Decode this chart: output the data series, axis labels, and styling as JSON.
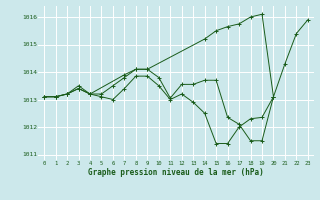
{
  "background_color": "#cce8eb",
  "grid_color": "#ffffff",
  "line_color": "#1a5c1a",
  "xlabel": "Graphe pression niveau de la mer (hPa)",
  "ylim": [
    1010.8,
    1016.4
  ],
  "xlim": [
    -0.5,
    23.5
  ],
  "yticks": [
    1011,
    1012,
    1013,
    1014,
    1015,
    1016
  ],
  "xticks": [
    0,
    1,
    2,
    3,
    4,
    5,
    6,
    7,
    8,
    9,
    10,
    11,
    12,
    13,
    14,
    15,
    16,
    17,
    18,
    19,
    20,
    21,
    22,
    23
  ],
  "lines": [
    {
      "x": [
        0,
        1,
        2,
        3,
        4,
        7,
        8,
        9,
        14,
        15,
        16,
        17,
        18,
        19,
        20,
        21,
        22,
        23
      ],
      "y": [
        1013.1,
        1013.1,
        1013.2,
        1013.4,
        1013.2,
        1013.9,
        1014.1,
        1014.1,
        1015.2,
        1015.5,
        1015.65,
        1015.75,
        1016.0,
        1016.1,
        1013.1,
        1014.3,
        1015.4,
        1015.9
      ]
    },
    {
      "x": [
        0,
        1,
        2,
        3,
        4,
        5,
        6,
        7,
        8,
        9,
        10,
        11,
        12,
        13,
        14,
        15,
        16,
        17,
        18,
        19,
        20
      ],
      "y": [
        1013.1,
        1013.1,
        1013.2,
        1013.5,
        1013.2,
        1013.2,
        1013.5,
        1013.8,
        1014.1,
        1014.1,
        1013.8,
        1013.05,
        1013.55,
        1013.55,
        1013.7,
        1013.7,
        1012.35,
        1012.1,
        1011.5,
        1011.5,
        1013.1
      ]
    },
    {
      "x": [
        0,
        1,
        2,
        3,
        4,
        5,
        6,
        7,
        8,
        9,
        10,
        11,
        12,
        13,
        14,
        15,
        16,
        17,
        18,
        19,
        20
      ],
      "y": [
        1013.1,
        1013.1,
        1013.2,
        1013.4,
        1013.2,
        1013.1,
        1013.0,
        1013.4,
        1013.85,
        1013.85,
        1013.5,
        1013.0,
        1013.2,
        1012.9,
        1012.5,
        1011.4,
        1011.4,
        1012.0,
        1012.3,
        1012.35,
        1013.1
      ]
    }
  ]
}
